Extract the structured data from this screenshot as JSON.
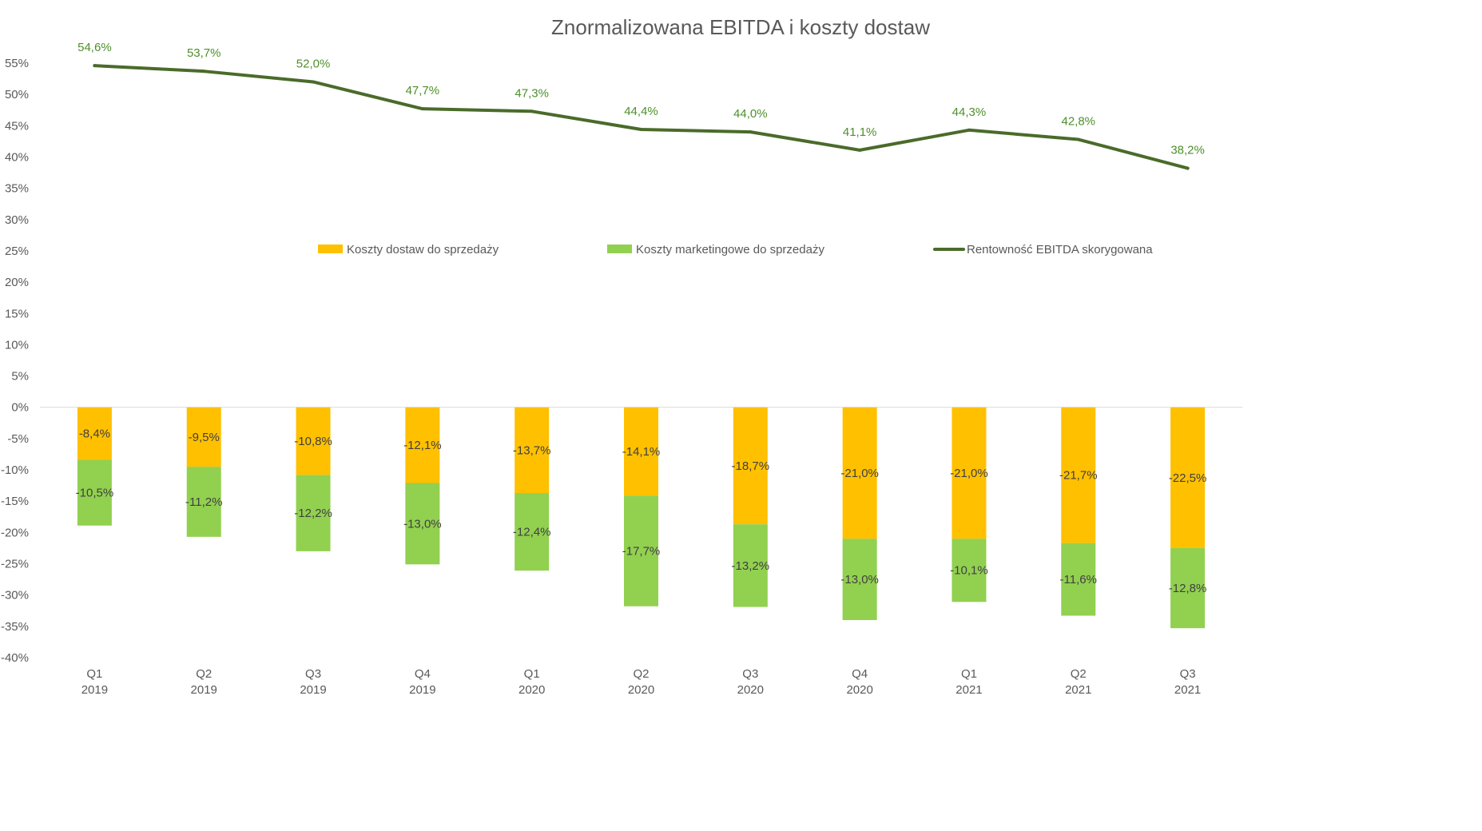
{
  "chart_data": {
    "type": "bar",
    "title": "Znormalizowana EBITDA i koszty dostaw",
    "xlabel": "",
    "ylabel": "",
    "ylim": [
      -0.4,
      0.55
    ],
    "ytick_step": 0.05,
    "grid": false,
    "legend_position": "middle",
    "categories": [
      [
        "Q1",
        "2019"
      ],
      [
        "Q2",
        "2019"
      ],
      [
        "Q3",
        "2019"
      ],
      [
        "Q4",
        "2019"
      ],
      [
        "Q1",
        "2020"
      ],
      [
        "Q2",
        "2020"
      ],
      [
        "Q3",
        "2020"
      ],
      [
        "Q4",
        "2020"
      ],
      [
        "Q1",
        "2021"
      ],
      [
        "Q2",
        "2021"
      ],
      [
        "Q3",
        "2021"
      ]
    ],
    "series": [
      {
        "name": "Koszty dostaw do sprzedaży",
        "type": "bar",
        "stack": "costs",
        "color": "#FFC000",
        "values": [
          -0.084,
          -0.095,
          -0.108,
          -0.121,
          -0.137,
          -0.141,
          -0.187,
          -0.21,
          -0.21,
          -0.217,
          -0.225
        ],
        "labels": [
          "-8,4%",
          "-9,5%",
          "-10,8%",
          "-12,1%",
          "-13,7%",
          "-14,1%",
          "-18,7%",
          "-21,0%",
          "-21,0%",
          "-21,7%",
          "-22,5%"
        ]
      },
      {
        "name": "Koszty marketingowe do sprzedaży",
        "type": "bar",
        "stack": "costs",
        "color": "#92D050",
        "values": [
          -0.105,
          -0.112,
          -0.122,
          -0.13,
          -0.124,
          -0.177,
          -0.132,
          -0.13,
          -0.101,
          -0.116,
          -0.128
        ],
        "labels": [
          "-10,5%",
          "-11,2%",
          "-12,2%",
          "-13,0%",
          "-12,4%",
          "-17,7%",
          "-13,2%",
          "-13,0%",
          "-10,1%",
          "-11,6%",
          "-12,8%"
        ]
      },
      {
        "name": "Rentowność EBITDA skorygowana",
        "type": "line",
        "color": "#4A6B2A",
        "label_color": "#4E8F2B",
        "values": [
          0.546,
          0.537,
          0.52,
          0.477,
          0.473,
          0.444,
          0.44,
          0.411,
          0.443,
          0.428,
          0.382
        ],
        "labels": [
          "54,6%",
          "53,7%",
          "52,0%",
          "47,7%",
          "47,3%",
          "44,4%",
          "44,0%",
          "41,1%",
          "44,3%",
          "42,8%",
          "38,2%"
        ]
      }
    ]
  }
}
